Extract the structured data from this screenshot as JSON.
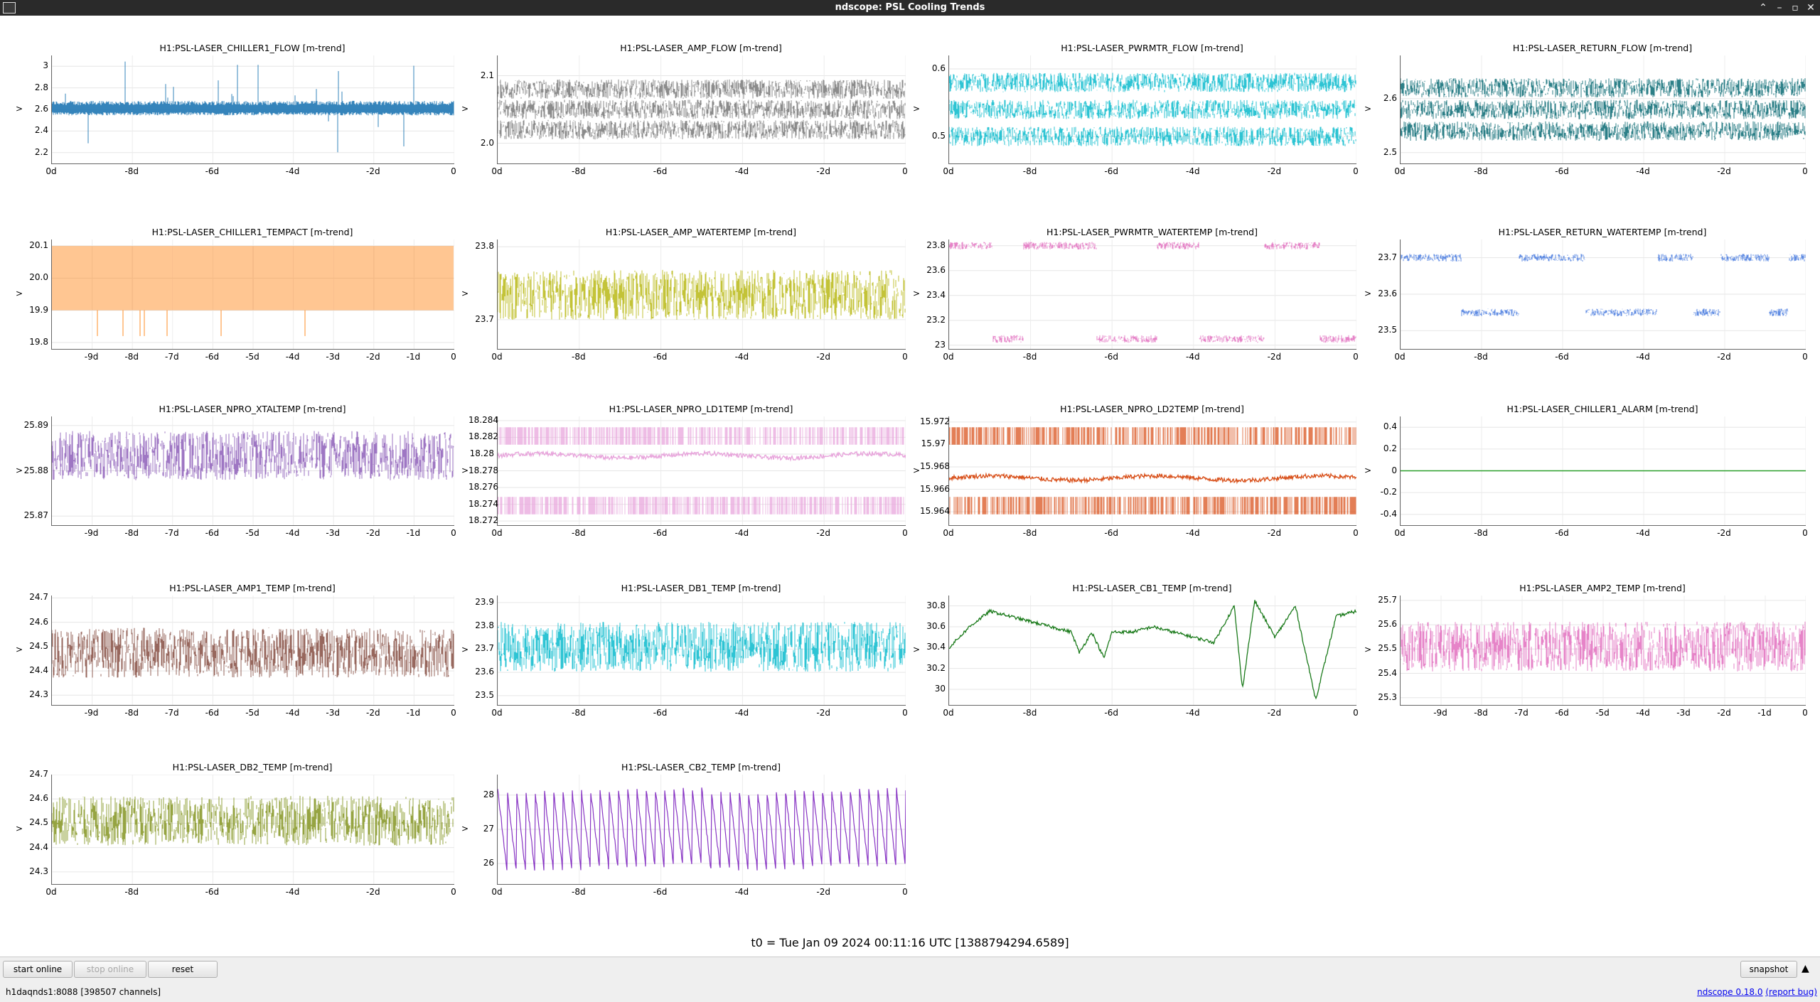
{
  "window": {
    "title": "ndscope: PSL Cooling Trends"
  },
  "colors": {
    "titlebar": "#2a2a2a",
    "bottombar": "#efefef",
    "link": "#0000ee"
  },
  "plots": [
    {
      "title": "H1:PSL-LASER_CHILLER1_FLOW [m-trend]",
      "ylabel": ">",
      "color": "#1f77b4",
      "style": "spiky",
      "yticks": [
        "3",
        "2.8",
        "2.6",
        "2.4",
        "2.2"
      ],
      "xticks": [
        "0d",
        "-8d",
        "-6d",
        "-4d",
        "-2d",
        "0"
      ],
      "chart_data": {
        "type": "line",
        "series": [
          {
            "values": [
              2.62,
              2.62,
              2.6,
              2.63,
              2.6,
              2.62,
              2.61,
              2.62,
              2.6,
              2.62
            ]
          }
        ],
        "ylim": [
          2.1,
          3.1
        ],
        "xlim": [
          -10,
          0
        ]
      }
    },
    {
      "title": "H1:PSL-LASER_AMP_FLOW [m-trend]",
      "ylabel": ">",
      "color": "#7f7f7f",
      "style": "bands",
      "yticks": [
        "2.1",
        "2.0"
      ],
      "xticks": [
        "0d",
        "-8d",
        "-6d",
        "-4d",
        "-2d",
        "0"
      ],
      "chart_data": {
        "type": "line",
        "series": [
          {
            "values": [
              2.08,
              2.05,
              2.02
            ]
          }
        ],
        "ylim": [
          1.97,
          2.13
        ],
        "xlim": [
          -10,
          0
        ]
      }
    },
    {
      "title": "H1:PSL-LASER_PWRMTR_FLOW [m-trend]",
      "ylabel": ">",
      "color": "#17becf",
      "style": "bands",
      "yticks": [
        "0.6",
        "0.5"
      ],
      "xticks": [
        "0d",
        "-8d",
        "-6d",
        "-4d",
        "-2d",
        "0"
      ],
      "chart_data": {
        "type": "line",
        "series": [
          {
            "values": [
              0.58,
              0.54,
              0.5
            ]
          }
        ],
        "ylim": [
          0.46,
          0.62
        ],
        "xlim": [
          -10,
          0
        ]
      }
    },
    {
      "title": "H1:PSL-LASER_RETURN_FLOW [m-trend]",
      "ylabel": ">",
      "color": "#16727b",
      "style": "bands",
      "yticks": [
        "2.6",
        "2.5"
      ],
      "xticks": [
        "0d",
        "-8d",
        "-6d",
        "-4d",
        "-2d",
        "0"
      ],
      "chart_data": {
        "type": "line",
        "series": [
          {
            "values": [
              2.62,
              2.58,
              2.54
            ]
          }
        ],
        "ylim": [
          2.48,
          2.68
        ],
        "xlim": [
          -10,
          0
        ]
      }
    },
    {
      "title": "H1:PSL-LASER_CHILLER1_TEMPACT [m-trend]",
      "ylabel": ">",
      "color": "#ff7f0e",
      "style": "square",
      "yticks": [
        "20.1",
        "20.0",
        "19.9",
        "19.8"
      ],
      "xticks": [
        "-9d",
        "-8d",
        "-7d",
        "-6d",
        "-5d",
        "-4d",
        "-3d",
        "-2d",
        "-1d",
        "0"
      ],
      "chart_data": {
        "type": "line",
        "series": [
          {
            "values": [
              19.9,
              20.1,
              19.9,
              20.1,
              19.9,
              20.1
            ]
          }
        ],
        "ylim": [
          19.78,
          20.12
        ],
        "xlim": [
          -10,
          0
        ]
      }
    },
    {
      "title": "H1:PSL-LASER_AMP_WATERTEMP [m-trend]",
      "ylabel": ">",
      "color": "#bcbd22",
      "style": "noise",
      "yticks": [
        "23.8",
        "23.7"
      ],
      "xticks": [
        "0d",
        "-8d",
        "-6d",
        "-4d",
        "-2d",
        "0"
      ],
      "chart_data": {
        "type": "line",
        "series": [
          {
            "values": [
              23.73,
              23.74,
              23.73,
              23.74,
              23.73
            ]
          }
        ],
        "ylim": [
          23.66,
          23.81
        ],
        "xlim": [
          -10,
          0
        ]
      }
    },
    {
      "title": "H1:PSL-LASER_PWRMTR_WATERTEMP [m-trend]",
      "ylabel": ">",
      "color": "#e377c2",
      "style": "steps",
      "yticks": [
        "23.8",
        "23.6",
        "23.4",
        "23.2",
        "23"
      ],
      "xticks": [
        "0d",
        "-8d",
        "-6d",
        "-4d",
        "-2d",
        "0"
      ],
      "chart_data": {
        "type": "line",
        "series": [
          {
            "values": [
              23.05,
              23.8,
              23.05,
              23.8,
              23.05,
              23.8,
              23.05,
              23.8,
              23.05
            ]
          }
        ],
        "ylim": [
          22.97,
          23.85
        ],
        "xlim": [
          -10,
          0
        ]
      }
    },
    {
      "title": "H1:PSL-LASER_RETURN_WATERTEMP [m-trend]",
      "ylabel": ">",
      "color": "#4f7fe0",
      "style": "steps",
      "yticks": [
        "23.7",
        "23.6",
        "23.5"
      ],
      "xticks": [
        "0d",
        "-8d",
        "-6d",
        "-4d",
        "-2d",
        "0"
      ],
      "chart_data": {
        "type": "line",
        "series": [
          {
            "values": [
              23.55,
              23.7,
              23.55,
              23.7,
              23.55,
              23.7,
              23.55
            ]
          }
        ],
        "ylim": [
          23.45,
          23.75
        ],
        "xlim": [
          -10,
          0
        ]
      }
    },
    {
      "title": "H1:PSL-LASER_NPRO_XTALTEMP [m-trend]",
      "ylabel": ">",
      "color": "#9467bd",
      "style": "noise",
      "yticks": [
        "25.89",
        "25.88",
        "25.87"
      ],
      "xticks": [
        "-9d",
        "-8d",
        "-7d",
        "-6d",
        "-5d",
        "-4d",
        "-3d",
        "-2d",
        "-1d",
        "0"
      ],
      "chart_data": {
        "type": "line",
        "series": [
          {
            "values": [
              25.884,
              25.882,
              25.884,
              25.883,
              25.884
            ]
          }
        ],
        "ylim": [
          25.868,
          25.892
        ],
        "xlim": [
          -10,
          0
        ]
      }
    },
    {
      "title": "H1:PSL-LASER_NPRO_LD1TEMP [m-trend]",
      "ylabel": ">",
      "color": "#e8a6dc",
      "style": "dual",
      "yticks": [
        "18.284",
        "18.282",
        "18.28",
        "18.278",
        "18.276",
        "18.274",
        "18.272"
      ],
      "xticks": [
        "0d",
        "-8d",
        "-6d",
        "-4d",
        "-2d",
        "0"
      ],
      "chart_data": {
        "type": "line",
        "series": [
          {
            "values": [
              18.2795,
              18.2798,
              18.2795
            ]
          }
        ],
        "ylim": [
          18.2715,
          18.2845
        ],
        "xlim": [
          -10,
          0
        ]
      }
    },
    {
      "title": "H1:PSL-LASER_NPRO_LD2TEMP [m-trend]",
      "ylabel": ">",
      "color": "#d9531e",
      "style": "dual",
      "yticks": [
        "15.972",
        "15.97",
        "15.968",
        "15.966",
        "15.964"
      ],
      "xticks": [
        "0d",
        "-8d",
        "-6d",
        "-4d",
        "-2d",
        "0"
      ],
      "chart_data": {
        "type": "line",
        "series": [
          {
            "values": [
              15.9665,
              15.967,
              15.9665
            ]
          }
        ],
        "ylim": [
          15.9628,
          15.9725
        ],
        "xlim": [
          -10,
          0
        ]
      }
    },
    {
      "title": "H1:PSL-LASER_CHILLER1_ALARM [m-trend]",
      "ylabel": ">",
      "color": "#2ca02c",
      "style": "flat",
      "yticks": [
        "0.4",
        "0.2",
        "0",
        "-0.2",
        "-0.4"
      ],
      "xticks": [
        "0d",
        "-8d",
        "-6d",
        "-4d",
        "-2d",
        "0"
      ],
      "chart_data": {
        "type": "line",
        "series": [
          {
            "values": [
              0,
              0
            ]
          }
        ],
        "ylim": [
          -0.5,
          0.5
        ],
        "xlim": [
          -10,
          0
        ]
      }
    },
    {
      "title": "H1:PSL-LASER_AMP1_TEMP [m-trend]",
      "ylabel": ">",
      "color": "#8c564b",
      "style": "noise",
      "yticks": [
        "24.7",
        "24.6",
        "24.5",
        "24.4",
        "24.3"
      ],
      "xticks": [
        "-9d",
        "-8d",
        "-7d",
        "-6d",
        "-5d",
        "-4d",
        "-3d",
        "-2d",
        "-1d",
        "0"
      ],
      "chart_data": {
        "type": "line",
        "series": [
          {
            "values": [
              24.47,
              24.48,
              24.47,
              24.48
            ]
          }
        ],
        "ylim": [
          24.26,
          24.71
        ],
        "xlim": [
          -10,
          0
        ]
      }
    },
    {
      "title": "H1:PSL-LASER_DB1_TEMP [m-trend]",
      "ylabel": ">",
      "color": "#17becf",
      "style": "noise",
      "yticks": [
        "23.9",
        "23.8",
        "23.7",
        "23.6",
        "23.5"
      ],
      "xticks": [
        "0d",
        "-8d",
        "-6d",
        "-4d",
        "-2d",
        "0"
      ],
      "chart_data": {
        "type": "line",
        "series": [
          {
            "values": [
              23.7,
              23.72,
              23.7,
              23.72
            ]
          }
        ],
        "ylim": [
          23.46,
          23.93
        ],
        "xlim": [
          -10,
          0
        ]
      }
    },
    {
      "title": "H1:PSL-LASER_CB1_TEMP [m-trend]",
      "ylabel": ">",
      "color": "#1a7a1a",
      "style": "line",
      "yticks": [
        "30.8",
        "30.6",
        "30.4",
        "30.2",
        "30"
      ],
      "xticks": [
        "0d",
        "-8d",
        "-6d",
        "-4d",
        "-2d",
        "0"
      ],
      "chart_data": {
        "type": "line",
        "x": [
          -10,
          -9.5,
          -9,
          -8.5,
          -8,
          -7.5,
          -7,
          -6.8,
          -6.5,
          -6.2,
          -6,
          -5.5,
          -5,
          -4.5,
          -4,
          -3.5,
          -3,
          -2.8,
          -2.5,
          -2,
          -1.5,
          -1,
          -0.5,
          0
        ],
        "series": [
          {
            "values": [
              30.4,
              30.6,
              30.75,
              30.7,
              30.65,
              30.6,
              30.55,
              30.35,
              30.55,
              30.3,
              30.55,
              30.55,
              30.6,
              30.55,
              30.5,
              30.45,
              30.8,
              30.0,
              30.85,
              30.5,
              30.8,
              29.9,
              30.7,
              30.75
            ]
          }
        ],
        "ylim": [
          29.85,
          30.9
        ],
        "xlim": [
          -10,
          0
        ]
      }
    },
    {
      "title": "H1:PSL-LASER_AMP2_TEMP [m-trend]",
      "ylabel": ">",
      "color": "#e377c2",
      "style": "noise",
      "yticks": [
        "25.7",
        "25.6",
        "25.5",
        "25.4",
        "25.3"
      ],
      "xticks": [
        "-9d",
        "-8d",
        "-7d",
        "-6d",
        "-5d",
        "-4d",
        "-3d",
        "-2d",
        "-1d",
        "0"
      ],
      "chart_data": {
        "type": "line",
        "series": [
          {
            "values": [
              25.5,
              25.52,
              25.5,
              25.52
            ]
          }
        ],
        "ylim": [
          25.27,
          25.72
        ],
        "xlim": [
          -10,
          0
        ]
      }
    },
    {
      "title": "H1:PSL-LASER_DB2_TEMP [m-trend]",
      "ylabel": ">",
      "color": "#8b9a2e",
      "style": "noise",
      "yticks": [
        "24.7",
        "24.6",
        "24.5",
        "24.4",
        "24.3"
      ],
      "xticks": [
        "0d",
        "-8d",
        "-6d",
        "-4d",
        "-2d",
        "0"
      ],
      "chart_data": {
        "type": "line",
        "series": [
          {
            "values": [
              24.5,
              24.52,
              24.5,
              24.52
            ]
          }
        ],
        "ylim": [
          24.25,
          24.7
        ],
        "xlim": [
          -10,
          0
        ]
      }
    },
    {
      "title": "H1:PSL-LASER_CB2_TEMP [m-trend]",
      "ylabel": ">",
      "color": "#7b1fbe",
      "style": "saw",
      "yticks": [
        "28",
        "27",
        "26"
      ],
      "xticks": [
        "0d",
        "-8d",
        "-6d",
        "-4d",
        "-2d",
        "0"
      ],
      "chart_data": {
        "type": "line",
        "series": [
          {
            "values": [
              25.8,
              28.2,
              25.8,
              28.2
            ]
          }
        ],
        "ylim": [
          25.4,
          28.6
        ],
        "xlim": [
          -10,
          0
        ]
      }
    }
  ],
  "t0_label": "t0 = Tue Jan 09 2024 00:11:16 UTC [1388794294.6589]",
  "buttons": {
    "start_online": "start online",
    "stop_online": "stop online",
    "reset": "reset",
    "snapshot": "snapshot"
  },
  "status": {
    "server": "h1daqnds1:8088  [398507 channels]",
    "version": "ndscope 0.18.0",
    "report": "(report bug)"
  }
}
